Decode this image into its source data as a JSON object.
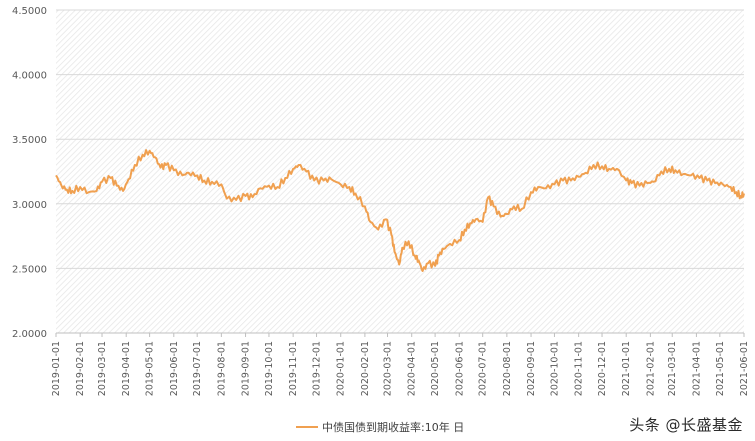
{
  "chart_data": {
    "type": "line",
    "title": "",
    "xlabel": "",
    "ylabel": "",
    "ylim": [
      2.0,
      4.5
    ],
    "yticks": [
      "2.0000",
      "2.5000",
      "3.0000",
      "3.5000",
      "4.0000",
      "4.5000"
    ],
    "xticks": [
      "2019-01-01",
      "2019-02-01",
      "2019-03-01",
      "2019-04-01",
      "2019-05-01",
      "2019-06-01",
      "2019-07-01",
      "2019-08-01",
      "2019-09-01",
      "2019-10-01",
      "2019-11-01",
      "2019-12-01",
      "2020-01-01",
      "2020-02-01",
      "2020-03-01",
      "2020-04-01",
      "2020-05-01",
      "2020-06-01",
      "2020-07-01",
      "2020-08-01",
      "2020-09-01",
      "2020-10-01",
      "2020-11-01",
      "2020-12-01",
      "2021-01-01",
      "2021-02-01",
      "2021-03-01",
      "2021-04-01",
      "2021-05-01",
      "2021-06-01"
    ],
    "series": [
      {
        "name": "中债国债到期收益率:10年 日",
        "color": "#F0A050",
        "points": [
          [
            "2019-01-01",
            3.22
          ],
          [
            "2019-01-08",
            3.14
          ],
          [
            "2019-01-15",
            3.11
          ],
          [
            "2019-01-22",
            3.1
          ],
          [
            "2019-02-01",
            3.13
          ],
          [
            "2019-02-12",
            3.09
          ],
          [
            "2019-02-22",
            3.1
          ],
          [
            "2019-03-01",
            3.17
          ],
          [
            "2019-03-12",
            3.2
          ],
          [
            "2019-03-20",
            3.14
          ],
          [
            "2019-03-28",
            3.1
          ],
          [
            "2019-04-04",
            3.19
          ],
          [
            "2019-04-12",
            3.3
          ],
          [
            "2019-04-22",
            3.38
          ],
          [
            "2019-05-01",
            3.41
          ],
          [
            "2019-05-08",
            3.36
          ],
          [
            "2019-05-15",
            3.28
          ],
          [
            "2019-05-22",
            3.3
          ],
          [
            "2019-06-01",
            3.26
          ],
          [
            "2019-06-12",
            3.22
          ],
          [
            "2019-06-20",
            3.24
          ],
          [
            "2019-07-01",
            3.22
          ],
          [
            "2019-07-10",
            3.18
          ],
          [
            "2019-07-20",
            3.17
          ],
          [
            "2019-08-01",
            3.15
          ],
          [
            "2019-08-08",
            3.04
          ],
          [
            "2019-08-20",
            3.03
          ],
          [
            "2019-09-01",
            3.06
          ],
          [
            "2019-09-10",
            3.05
          ],
          [
            "2019-09-20",
            3.12
          ],
          [
            "2019-10-01",
            3.14
          ],
          [
            "2019-10-12",
            3.13
          ],
          [
            "2019-10-22",
            3.2
          ],
          [
            "2019-11-01",
            3.27
          ],
          [
            "2019-11-08",
            3.3
          ],
          [
            "2019-11-18",
            3.25
          ],
          [
            "2019-11-28",
            3.18
          ],
          [
            "2019-12-10",
            3.18
          ],
          [
            "2019-12-20",
            3.19
          ],
          [
            "2020-01-01",
            3.15
          ],
          [
            "2020-01-12",
            3.13
          ],
          [
            "2020-01-20",
            3.08
          ],
          [
            "2020-02-01",
            2.98
          ],
          [
            "2020-02-08",
            2.86
          ],
          [
            "2020-02-18",
            2.8
          ],
          [
            "2020-02-28",
            2.88
          ],
          [
            "2020-03-06",
            2.76
          ],
          [
            "2020-03-10",
            2.63
          ],
          [
            "2020-03-16",
            2.53
          ],
          [
            "2020-03-20",
            2.66
          ],
          [
            "2020-03-28",
            2.71
          ],
          [
            "2020-04-05",
            2.6
          ],
          [
            "2020-04-10",
            2.56
          ],
          [
            "2020-04-15",
            2.48
          ],
          [
            "2020-04-22",
            2.54
          ],
          [
            "2020-05-01",
            2.52
          ],
          [
            "2020-05-06",
            2.6
          ],
          [
            "2020-05-12",
            2.65
          ],
          [
            "2020-05-20",
            2.69
          ],
          [
            "2020-06-01",
            2.72
          ],
          [
            "2020-06-08",
            2.8
          ],
          [
            "2020-06-15",
            2.85
          ],
          [
            "2020-06-22",
            2.88
          ],
          [
            "2020-07-01",
            2.86
          ],
          [
            "2020-07-08",
            3.05
          ],
          [
            "2020-07-15",
            2.98
          ],
          [
            "2020-07-24",
            2.9
          ],
          [
            "2020-08-01",
            2.92
          ],
          [
            "2020-08-10",
            2.98
          ],
          [
            "2020-08-20",
            2.96
          ],
          [
            "2020-09-01",
            3.09
          ],
          [
            "2020-09-10",
            3.13
          ],
          [
            "2020-09-20",
            3.12
          ],
          [
            "2020-10-01",
            3.15
          ],
          [
            "2020-10-12",
            3.18
          ],
          [
            "2020-10-22",
            3.18
          ],
          [
            "2020-11-01",
            3.21
          ],
          [
            "2020-11-10",
            3.24
          ],
          [
            "2020-11-20",
            3.3
          ],
          [
            "2020-12-01",
            3.29
          ],
          [
            "2020-12-10",
            3.27
          ],
          [
            "2020-12-20",
            3.27
          ],
          [
            "2021-01-01",
            3.18
          ],
          [
            "2021-01-08",
            3.16
          ],
          [
            "2021-01-18",
            3.14
          ],
          [
            "2021-01-28",
            3.16
          ],
          [
            "2021-02-05",
            3.17
          ],
          [
            "2021-02-15",
            3.25
          ],
          [
            "2021-02-25",
            3.27
          ],
          [
            "2021-03-05",
            3.26
          ],
          [
            "2021-03-15",
            3.23
          ],
          [
            "2021-03-25",
            3.22
          ],
          [
            "2021-04-05",
            3.2
          ],
          [
            "2021-04-15",
            3.18
          ],
          [
            "2021-04-25",
            3.16
          ],
          [
            "2021-05-05",
            3.15
          ],
          [
            "2021-05-15",
            3.13
          ],
          [
            "2021-05-22",
            3.09
          ],
          [
            "2021-05-28",
            3.06
          ],
          [
            "2021-06-01",
            3.08
          ]
        ]
      }
    ],
    "grid": true,
    "legend_position": "bottom"
  },
  "watermark": "头条 @长盛基金"
}
